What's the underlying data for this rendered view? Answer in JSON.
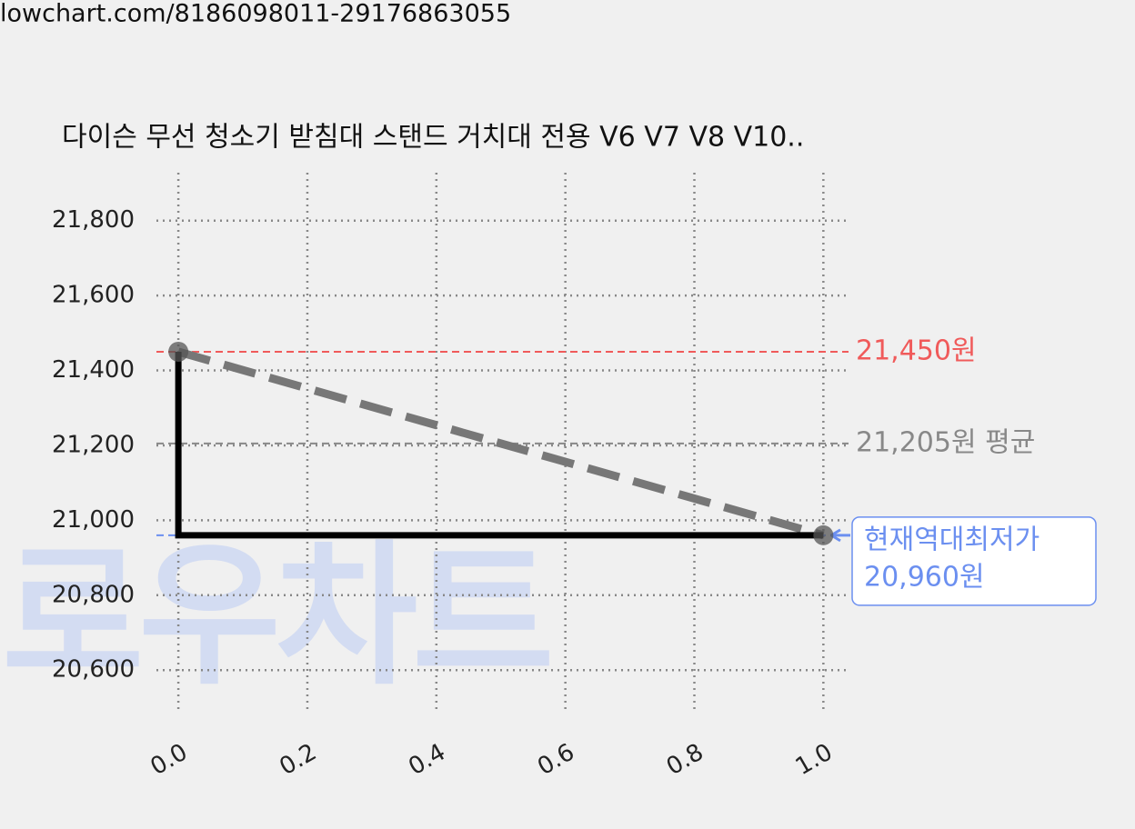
{
  "url": "lowchart.com/8186098011-29176863055",
  "watermark": "로우차트",
  "chart_data": {
    "type": "line",
    "title": "다이슨 무선 청소기 받침대 스탠드 거치대 전용 V6 V7 V8 V10..",
    "series": [
      {
        "color": "#000000",
        "style": "solid",
        "x": [
          0,
          0,
          1
        ],
        "values": [
          21450,
          20960,
          20960
        ]
      },
      {
        "color": "#777777",
        "style": "dashed",
        "x": [
          0,
          1
        ],
        "values": [
          21450,
          20960
        ]
      },
      {
        "color": "#555555",
        "style": "markers",
        "x": [
          0,
          1
        ],
        "values": [
          21450,
          20960
        ]
      }
    ],
    "reference_lines": [
      {
        "value": 21450,
        "label": "21,450원",
        "color": "#f05a5a"
      },
      {
        "value": 21205,
        "label": "21,205원 평균",
        "color": "#888888"
      },
      {
        "value": 20960,
        "label_lines": [
          "현재역대최저가",
          "20,960원"
        ],
        "color": "#6b8ff0",
        "boxed": true
      }
    ],
    "xlim": [
      -0.034,
      1.039
    ],
    "ylim": [
      20484,
      21928
    ],
    "xticks": [
      {
        "value": 0,
        "label": "0.0"
      },
      0.2,
      0.4,
      0.6,
      0.8,
      {
        "value": 1,
        "label": "1.0"
      }
    ],
    "yticks": [
      {
        "value": 20600,
        "label": "20,600"
      },
      {
        "value": 20800,
        "label": "20,800"
      },
      {
        "value": 21000,
        "label": "21,000"
      },
      {
        "value": 21200,
        "label": "21,200"
      },
      {
        "value": 21400,
        "label": "21,400"
      },
      {
        "value": 21600,
        "label": "21,600"
      },
      {
        "value": 21800,
        "label": "21,800"
      }
    ],
    "grid": true
  }
}
